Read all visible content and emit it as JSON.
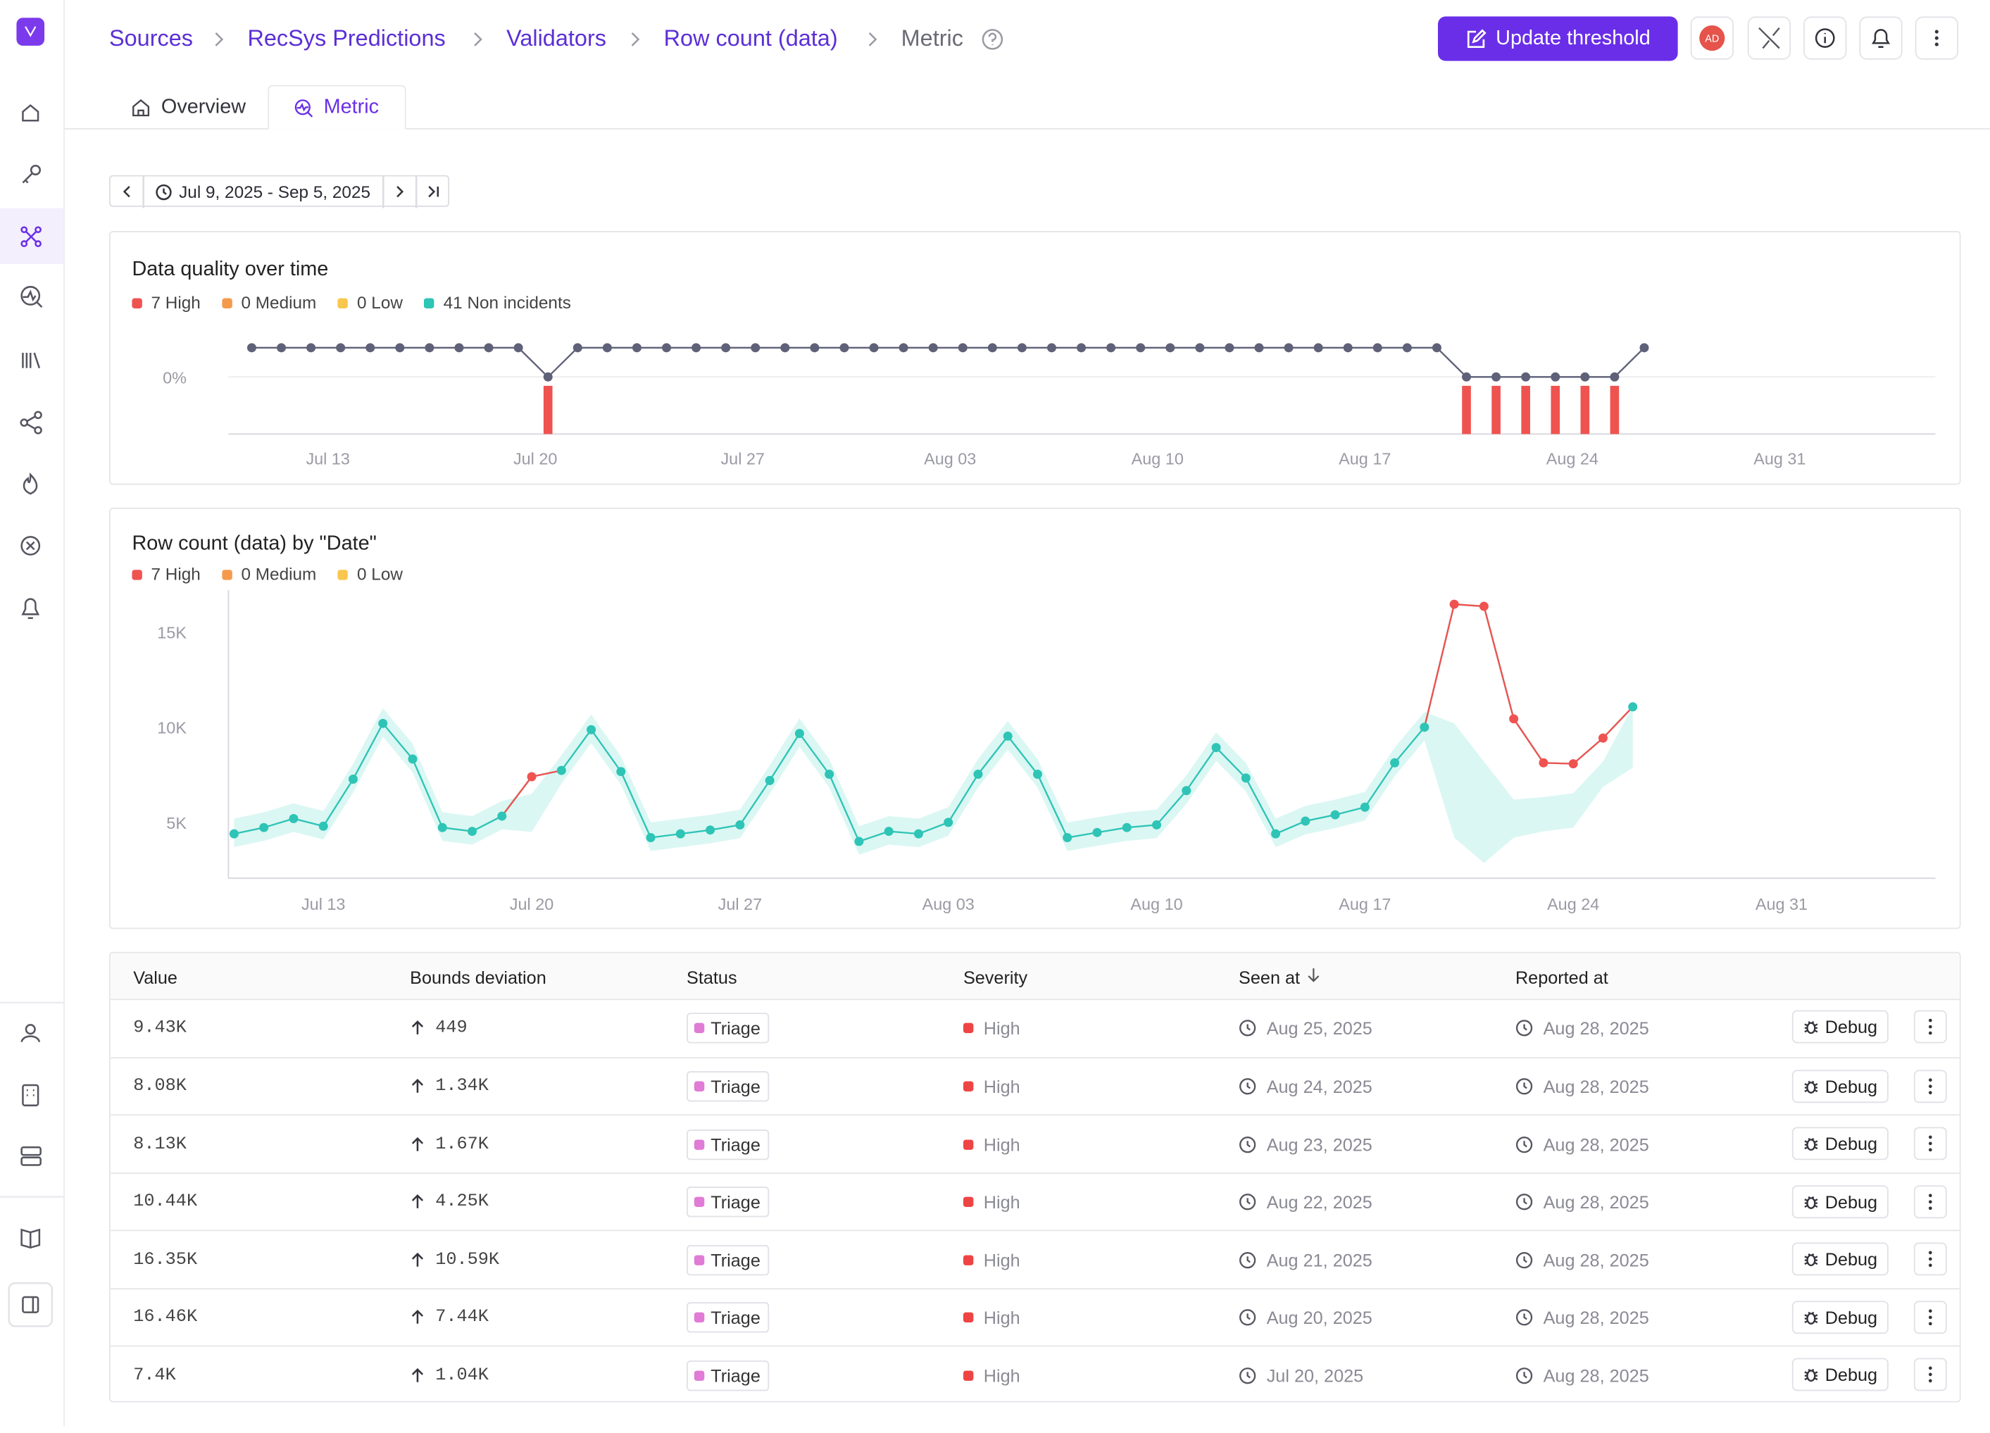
{
  "breadcrumb": [
    "Sources",
    "RecSys Predictions",
    "Validators",
    "Row count (data)",
    "Metric"
  ],
  "actions": {
    "primary": "Update threshold",
    "avatar": "AD"
  },
  "tabs": [
    "Overview",
    "Metric"
  ],
  "date_range": "Jul 9, 2025 - Sep 5, 2025",
  "chart_data": [
    {
      "type": "status",
      "title": "Data quality over time",
      "legend": [
        {
          "label": "7 High",
          "color": "#ef5350"
        },
        {
          "label": "0 Medium",
          "color": "#f59a4c"
        },
        {
          "label": "0 Low",
          "color": "#f9c74f"
        },
        {
          "label": "41 Non incidents",
          "color": "#2ec4b6"
        }
      ],
      "x": [
        "Jul 10",
        "Jul 11",
        "Jul 12",
        "Jul 13",
        "Jul 14",
        "Jul 15",
        "Jul 16",
        "Jul 17",
        "Jul 18",
        "Jul 19",
        "Jul 20",
        "Jul 21",
        "Jul 22",
        "Jul 23",
        "Jul 24",
        "Jul 25",
        "Jul 26",
        "Jul 27",
        "Jul 28",
        "Jul 29",
        "Jul 30",
        "Jul 31",
        "Aug 01",
        "Aug 02",
        "Aug 03",
        "Aug 04",
        "Aug 05",
        "Aug 06",
        "Aug 07",
        "Aug 08",
        "Aug 09",
        "Aug 10",
        "Aug 11",
        "Aug 12",
        "Aug 13",
        "Aug 14",
        "Aug 15",
        "Aug 16",
        "Aug 17",
        "Aug 18",
        "Aug 19",
        "Aug 20",
        "Aug 21",
        "Aug 22",
        "Aug 23",
        "Aug 24",
        "Aug 25",
        "Aug 26"
      ],
      "values": [
        1,
        1,
        1,
        1,
        1,
        1,
        1,
        1,
        1,
        1,
        0,
        1,
        1,
        1,
        1,
        1,
        1,
        1,
        1,
        1,
        1,
        1,
        1,
        1,
        1,
        1,
        1,
        1,
        1,
        1,
        1,
        1,
        1,
        1,
        1,
        1,
        1,
        1,
        1,
        1,
        1,
        0,
        0,
        0,
        0,
        0,
        0,
        1
      ],
      "color": "#5e6178",
      "incident_color": "#ef5350",
      "xlim": [
        "Jul 9",
        "Sep 5"
      ],
      "xticks": [
        "Jul 13",
        "Jul 20",
        "Jul 27",
        "Aug 03",
        "Aug 10",
        "Aug 17",
        "Aug 24",
        "Aug 31"
      ],
      "ylim": [
        -2,
        1
      ],
      "yticks": [
        {
          "value": 0,
          "label": "0%"
        }
      ],
      "grid": true
    },
    {
      "type": "line",
      "title": "Row count (data) by \"Date\"",
      "legend": [
        {
          "label": "7 High",
          "color": "#ef5350"
        },
        {
          "label": "0 Medium",
          "color": "#f59a4c"
        },
        {
          "label": "0 Low",
          "color": "#f9c74f"
        }
      ],
      "x": [
        "Jul 10",
        "Jul 11",
        "Jul 12",
        "Jul 13",
        "Jul 14",
        "Jul 15",
        "Jul 16",
        "Jul 17",
        "Jul 18",
        "Jul 19",
        "Jul 20",
        "Jul 21",
        "Jul 22",
        "Jul 23",
        "Jul 24",
        "Jul 25",
        "Jul 26",
        "Jul 27",
        "Jul 28",
        "Jul 29",
        "Jul 30",
        "Jul 31",
        "Aug 01",
        "Aug 02",
        "Aug 03",
        "Aug 04",
        "Aug 05",
        "Aug 06",
        "Aug 07",
        "Aug 08",
        "Aug 09",
        "Aug 10",
        "Aug 11",
        "Aug 12",
        "Aug 13",
        "Aug 14",
        "Aug 15",
        "Aug 16",
        "Aug 17",
        "Aug 18",
        "Aug 19",
        "Aug 20",
        "Aug 21",
        "Aug 22",
        "Aug 23",
        "Aug 24",
        "Aug 25",
        "Aug 26"
      ],
      "values": [
        4400,
        4730,
        5200,
        4800,
        7270,
        10200,
        8330,
        4730,
        4530,
        5330,
        7400,
        7730,
        9870,
        7670,
        4200,
        4400,
        4600,
        4870,
        7200,
        9670,
        7530,
        4000,
        4530,
        4400,
        5000,
        7530,
        9530,
        7530,
        4200,
        4470,
        4730,
        4870,
        6670,
        8930,
        7330,
        4400,
        5070,
        5400,
        5800,
        8130,
        10000,
        16460,
        16350,
        10440,
        8130,
        8080,
        9430,
        11070
      ],
      "lower": [
        3700,
        4030,
        4500,
        4100,
        6570,
        9500,
        7630,
        4030,
        3830,
        4630,
        4500,
        7030,
        9170,
        6970,
        3500,
        3700,
        3900,
        4170,
        6500,
        8970,
        6830,
        3300,
        3830,
        3700,
        4300,
        6830,
        8830,
        6830,
        3500,
        3770,
        4030,
        4170,
        5970,
        8230,
        6630,
        3700,
        4370,
        4700,
        5100,
        7430,
        9300,
        4200,
        2870,
        4200,
        4530,
        4730,
        6870,
        7870
      ],
      "upper": [
        5200,
        5530,
        6000,
        5600,
        8070,
        11000,
        9130,
        5530,
        5330,
        6130,
        6500,
        8530,
        10670,
        8470,
        5000,
        5200,
        5400,
        5670,
        8000,
        10470,
        8330,
        4800,
        5330,
        5200,
        5800,
        8330,
        10330,
        8330,
        5000,
        5270,
        5530,
        5670,
        7470,
        9730,
        8130,
        5200,
        5870,
        6200,
        6600,
        8930,
        10800,
        10200,
        8200,
        6200,
        6330,
        6530,
        8200,
        11100
      ],
      "color": "#2ec4b6",
      "band_color": "#dbf7f3",
      "incident_color": "#ef5350",
      "xlim": [
        "Jul 9",
        "Sep 5"
      ],
      "xticks": [
        "Jul 13",
        "Jul 20",
        "Jul 27",
        "Aug 03",
        "Aug 10",
        "Aug 17",
        "Aug 24",
        "Aug 31"
      ],
      "ylim": [
        2000,
        17000
      ],
      "yticks": [
        {
          "value": 5000,
          "label": "5K"
        },
        {
          "value": 10000,
          "label": "10K"
        },
        {
          "value": 15000,
          "label": "15K"
        }
      ]
    }
  ],
  "table": {
    "columns": [
      "Value",
      "Bounds deviation",
      "Status",
      "Severity",
      "Seen at",
      "Reported at"
    ],
    "rows": [
      {
        "value": "9.43K",
        "deviation": "449",
        "status": "Triage",
        "severity": "High",
        "seen_at": "Aug 25, 2025",
        "reported_at": "Aug 28, 2025",
        "action": "Debug"
      },
      {
        "value": "8.08K",
        "deviation": "1.34K",
        "status": "Triage",
        "severity": "High",
        "seen_at": "Aug 24, 2025",
        "reported_at": "Aug 28, 2025",
        "action": "Debug"
      },
      {
        "value": "8.13K",
        "deviation": "1.67K",
        "status": "Triage",
        "severity": "High",
        "seen_at": "Aug 23, 2025",
        "reported_at": "Aug 28, 2025",
        "action": "Debug"
      },
      {
        "value": "10.44K",
        "deviation": "4.25K",
        "status": "Triage",
        "severity": "High",
        "seen_at": "Aug 22, 2025",
        "reported_at": "Aug 28, 2025",
        "action": "Debug"
      },
      {
        "value": "16.35K",
        "deviation": "10.59K",
        "status": "Triage",
        "severity": "High",
        "seen_at": "Aug 21, 2025",
        "reported_at": "Aug 28, 2025",
        "action": "Debug"
      },
      {
        "value": "16.46K",
        "deviation": "7.44K",
        "status": "Triage",
        "severity": "High",
        "seen_at": "Aug 20, 2025",
        "reported_at": "Aug 28, 2025",
        "action": "Debug"
      },
      {
        "value": "7.4K",
        "deviation": "1.04K",
        "status": "Triage",
        "severity": "High",
        "seen_at": "Jul 20, 2025",
        "reported_at": "Aug 28, 2025",
        "action": "Debug"
      }
    ]
  }
}
